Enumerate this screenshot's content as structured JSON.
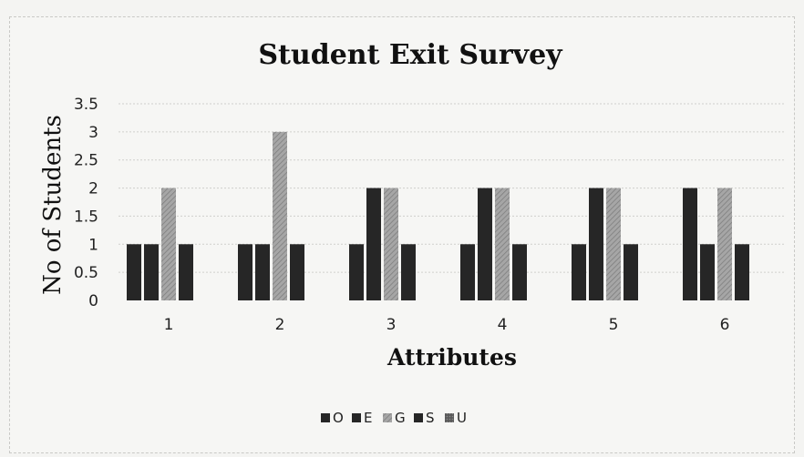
{
  "chart_data": {
    "type": "bar",
    "title": "Student Exit Survey",
    "xlabel": "Attributes",
    "ylabel": "No of Students",
    "categories": [
      "1",
      "2",
      "3",
      "4",
      "5",
      "6"
    ],
    "ylim": [
      0,
      3.5
    ],
    "yticks": [
      "0",
      "0.5",
      "1",
      "1.5",
      "2",
      "2.5",
      "3",
      "3.5"
    ],
    "grid": true,
    "legend_position": "bottom",
    "series": [
      {
        "name": "O",
        "color": "#262626",
        "values": [
          1,
          1,
          1,
          1,
          1,
          2
        ]
      },
      {
        "name": "E",
        "color": "#262626",
        "values": [
          1,
          1,
          2,
          2,
          2,
          1
        ]
      },
      {
        "name": "G",
        "color": "#9a9a9a",
        "values": [
          2,
          3,
          2,
          2,
          2,
          2
        ]
      },
      {
        "name": "S",
        "color": "#262626",
        "values": [
          1,
          1,
          1,
          1,
          1,
          1
        ]
      },
      {
        "name": "U",
        "color": "#555555",
        "values": [
          0,
          0,
          0,
          0,
          0,
          0
        ]
      }
    ]
  }
}
